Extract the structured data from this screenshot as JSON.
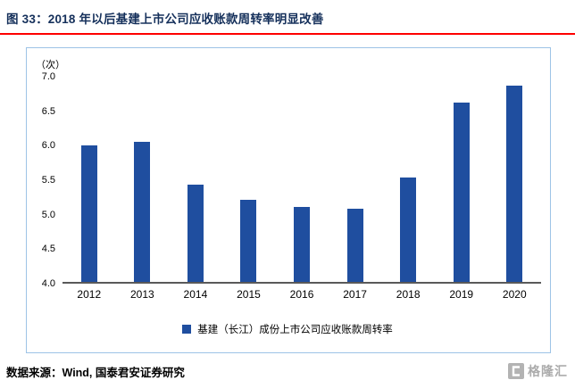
{
  "title": "图 33：2018 年以后基建上市公司应收账款周转率明显改善",
  "chart_data": {
    "type": "bar",
    "title": "图 33：2018 年以后基建上市公司应收账款周转率明显改善",
    "unit_label": "（次）",
    "categories": [
      "2012",
      "2013",
      "2014",
      "2015",
      "2016",
      "2017",
      "2018",
      "2019",
      "2020"
    ],
    "values": [
      6.0,
      6.05,
      5.42,
      5.2,
      5.1,
      5.07,
      5.53,
      6.62,
      6.87
    ],
    "xlabel": "",
    "ylabel": "（次）",
    "ylim": [
      4.0,
      7.0
    ],
    "ytick_step": 0.5,
    "yticks": [
      "7.0",
      "6.5",
      "6.0",
      "5.5",
      "5.0",
      "4.5",
      "4.0"
    ],
    "grid": false,
    "legend_position": "bottom",
    "legend": "基建（长江）成份上市公司应收账款周转率",
    "bar_color": "#1F4E9F"
  },
  "footer": {
    "source": "数据来源：Wind, 国泰君安证券研究",
    "logo_text": "格隆汇"
  },
  "colors": {
    "bar": "#1F4E9F",
    "title_text": "#15305B",
    "title_underline": "#FE0000",
    "frame_border": "#9DC3E6",
    "axis_line": "#595959"
  }
}
